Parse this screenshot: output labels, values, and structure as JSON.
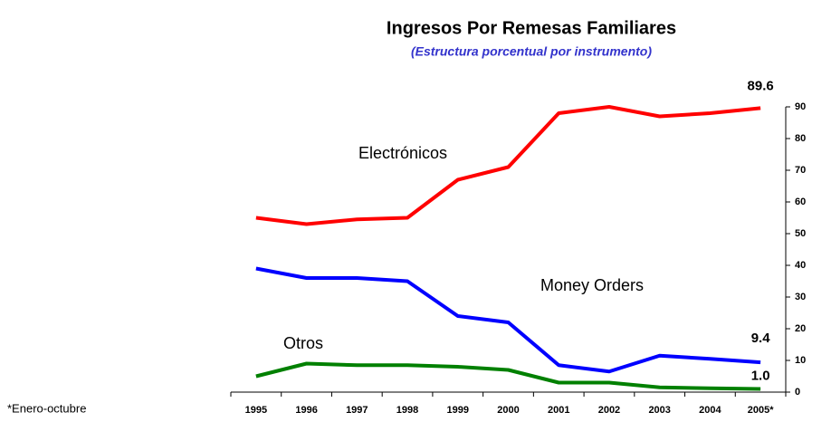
{
  "chart_data": {
    "type": "line",
    "title": "Ingresos Por Remesas Familiares",
    "subtitle": "(Estructura porcentual por instrumento)",
    "footnote": "*Enero-octubre",
    "categories": [
      "1995",
      "1996",
      "1997",
      "1998",
      "1999",
      "2000",
      "2001",
      "2002",
      "2003",
      "2004",
      "2005*"
    ],
    "series": [
      {
        "name": "Electrónicos",
        "color": "#ff0000",
        "values": [
          55,
          53,
          54.5,
          55,
          67,
          71,
          88,
          90,
          87,
          88,
          89.6
        ],
        "value_labels": [
          null,
          null,
          null,
          null,
          null,
          null,
          null,
          null,
          null,
          null,
          "89.6"
        ]
      },
      {
        "name": "Money Orders",
        "color": "#0000ff",
        "values": [
          39,
          36,
          36,
          35,
          24,
          22,
          8.5,
          6.5,
          11.5,
          10.5,
          9.4
        ],
        "value_labels": [
          null,
          null,
          null,
          null,
          null,
          null,
          null,
          null,
          null,
          null,
          "9.4"
        ]
      },
      {
        "name": "Otros",
        "color": "#008000",
        "values": [
          5,
          9,
          8.5,
          8.5,
          8,
          7,
          3,
          3,
          1.5,
          1.2,
          1.0
        ],
        "value_labels": [
          null,
          null,
          null,
          null,
          null,
          null,
          null,
          null,
          null,
          null,
          "1.0"
        ]
      }
    ],
    "ylim": [
      0,
      90
    ],
    "yticks": [
      0,
      10,
      20,
      30,
      40,
      50,
      60,
      70,
      80,
      90
    ],
    "y_axis_side": "right"
  }
}
